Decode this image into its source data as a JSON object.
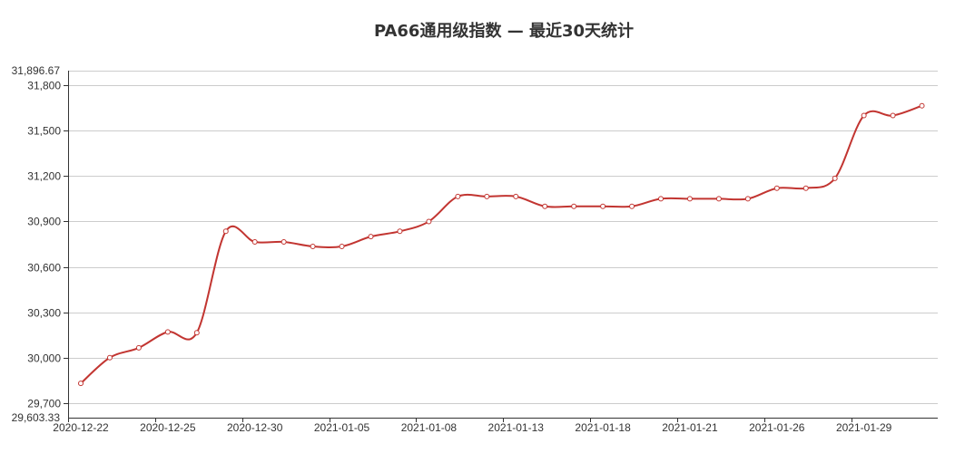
{
  "chart_data": {
    "type": "line",
    "title": "PA66通用级指数 — 最近30天统计",
    "xlabel": "",
    "ylabel": "",
    "ylim": [
      29603.33,
      31896.67
    ],
    "yticks": [
      29700,
      30000,
      30300,
      30600,
      30900,
      31200,
      31500,
      31800
    ],
    "y_tick_labels": [
      "29,700",
      "30,000",
      "30,300",
      "30,600",
      "30,900",
      "31,200",
      "31,500",
      "31,800"
    ],
    "y_extreme_labels": [
      "29,603.33",
      "31,896.67"
    ],
    "x_tick_labels": [
      "2020-12-22",
      "2020-12-25",
      "2020-12-30",
      "2021-01-05",
      "2021-01-08",
      "2021-01-13",
      "2021-01-18",
      "2021-01-21",
      "2021-01-26",
      "2021-01-29"
    ],
    "grid": true,
    "series": [
      {
        "color": "#c23531",
        "values": [
          29830,
          30000,
          30065,
          30170,
          30165,
          30835,
          30765,
          30765,
          30735,
          30735,
          30800,
          30835,
          30900,
          31065,
          31065,
          31065,
          31000,
          31000,
          31000,
          31000,
          31050,
          31050,
          31050,
          31050,
          31120,
          31120,
          31185,
          31600,
          31600,
          31665
        ]
      }
    ]
  }
}
